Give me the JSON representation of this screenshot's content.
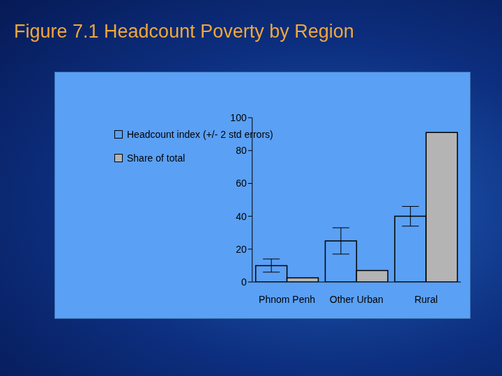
{
  "chart_data": {
    "type": "bar",
    "title": "Figure 7.1 Headcount Poverty by Region",
    "categories": [
      "Phnom Penh",
      "Other Urban",
      "Rural"
    ],
    "series": [
      {
        "name": "Headcount index (+/- 2 std errors)",
        "color": "#5aa0f5",
        "values": [
          10,
          25,
          40
        ],
        "error": [
          4,
          8,
          6
        ]
      },
      {
        "name": "Share of total",
        "color": "#b4b4b4",
        "values": [
          2.5,
          7,
          91
        ]
      }
    ],
    "ylim": [
      0,
      100
    ],
    "yticks": [
      0,
      20,
      40,
      60,
      80,
      100
    ],
    "grid": false,
    "legend": "upper left"
  }
}
